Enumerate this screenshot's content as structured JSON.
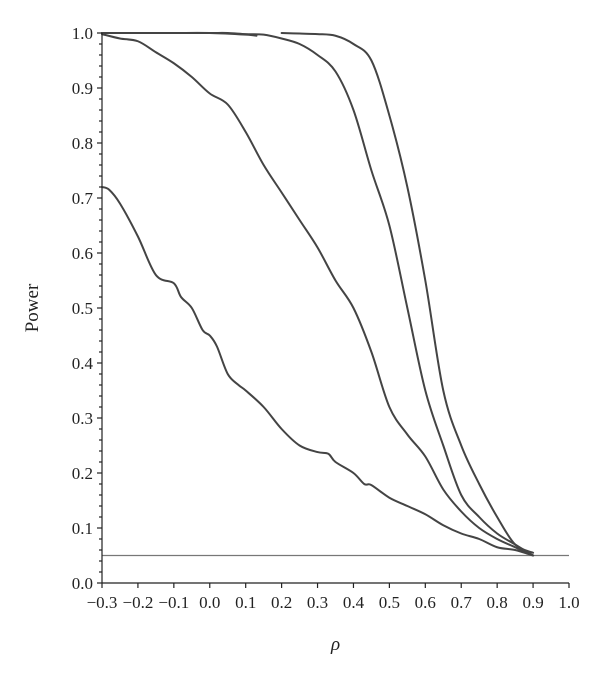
{
  "chart_data": {
    "type": "line",
    "title": "",
    "xlabel": "ρ",
    "ylabel": "Power",
    "xlim": [
      -0.3,
      1.0
    ],
    "ylim": [
      0.0,
      1.0
    ],
    "xticks": [
      -0.3,
      -0.2,
      -0.1,
      0.0,
      0.1,
      0.2,
      0.3,
      0.4,
      0.5,
      0.6,
      0.7,
      0.8,
      0.9,
      1.0
    ],
    "xtick_labels": [
      "−0.3",
      "−0.2",
      "−0.1",
      "0.0",
      "0.1",
      "0.2",
      "0.3",
      "0.4",
      "0.5",
      "0.6",
      "0.7",
      "0.8",
      "0.9",
      "1.0"
    ],
    "yticks": [
      0.0,
      0.1,
      0.2,
      0.3,
      0.4,
      0.5,
      0.6,
      0.7,
      0.8,
      0.9,
      1.0
    ],
    "ytick_labels": [
      "0.0",
      "0.1",
      "0.2",
      "0.3",
      "0.4",
      "0.5",
      "0.6",
      "0.7",
      "0.8",
      "0.9",
      "1.0"
    ],
    "grid": false,
    "reference_line": {
      "y": 0.05
    },
    "series": [
      {
        "x": [
          -0.3,
          -0.28,
          -0.25,
          -0.2,
          -0.15,
          -0.1,
          -0.08,
          -0.05,
          -0.02,
          0.0,
          0.02,
          0.05,
          0.08,
          0.1,
          0.15,
          0.2,
          0.25,
          0.3,
          0.33,
          0.35,
          0.4,
          0.43,
          0.45,
          0.5,
          0.55,
          0.6,
          0.65,
          0.7,
          0.75,
          0.8,
          0.85,
          0.9
        ],
        "y": [
          0.72,
          0.715,
          0.69,
          0.63,
          0.56,
          0.545,
          0.52,
          0.5,
          0.46,
          0.45,
          0.43,
          0.38,
          0.36,
          0.35,
          0.32,
          0.28,
          0.25,
          0.238,
          0.235,
          0.22,
          0.2,
          0.18,
          0.178,
          0.155,
          0.14,
          0.125,
          0.105,
          0.09,
          0.08,
          0.065,
          0.06,
          0.05
        ]
      },
      {
        "x": [
          -0.3,
          -0.25,
          -0.2,
          -0.15,
          -0.1,
          -0.05,
          0.0,
          0.05,
          0.1,
          0.15,
          0.2,
          0.25,
          0.3,
          0.35,
          0.4,
          0.45,
          0.5,
          0.55,
          0.6,
          0.65,
          0.7,
          0.75,
          0.8,
          0.85,
          0.9
        ],
        "y": [
          0.998,
          0.99,
          0.985,
          0.965,
          0.945,
          0.92,
          0.89,
          0.87,
          0.82,
          0.76,
          0.71,
          0.66,
          0.61,
          0.55,
          0.5,
          0.42,
          0.32,
          0.27,
          0.23,
          0.17,
          0.13,
          0.1,
          0.08,
          0.065,
          0.05
        ]
      },
      {
        "x": [
          -0.3,
          -0.2,
          -0.1,
          0.0,
          0.05,
          0.1,
          0.15,
          0.2,
          0.25,
          0.3,
          0.35,
          0.4,
          0.45,
          0.5,
          0.55,
          0.6,
          0.65,
          0.7,
          0.75,
          0.8,
          0.85,
          0.9
        ],
        "y": [
          1.0,
          1.0,
          1.0,
          1.0,
          1.0,
          0.998,
          0.997,
          0.99,
          0.98,
          0.96,
          0.93,
          0.86,
          0.75,
          0.65,
          0.5,
          0.35,
          0.25,
          0.16,
          0.12,
          0.09,
          0.07,
          0.05
        ]
      },
      {
        "x": [
          0.2,
          0.25,
          0.3,
          0.35,
          0.4,
          0.45,
          0.5,
          0.55,
          0.6,
          0.65,
          0.7,
          0.75,
          0.8,
          0.85,
          0.9
        ],
        "y": [
          1.0,
          0.999,
          0.998,
          0.995,
          0.98,
          0.95,
          0.85,
          0.72,
          0.55,
          0.35,
          0.25,
          0.18,
          0.12,
          0.07,
          0.055
        ]
      },
      {
        "x": [
          -0.3,
          -0.2,
          -0.1,
          0.0,
          0.1,
          0.13
        ],
        "y": [
          1.0,
          1.0,
          1.0,
          1.0,
          0.997,
          0.995
        ]
      }
    ]
  }
}
